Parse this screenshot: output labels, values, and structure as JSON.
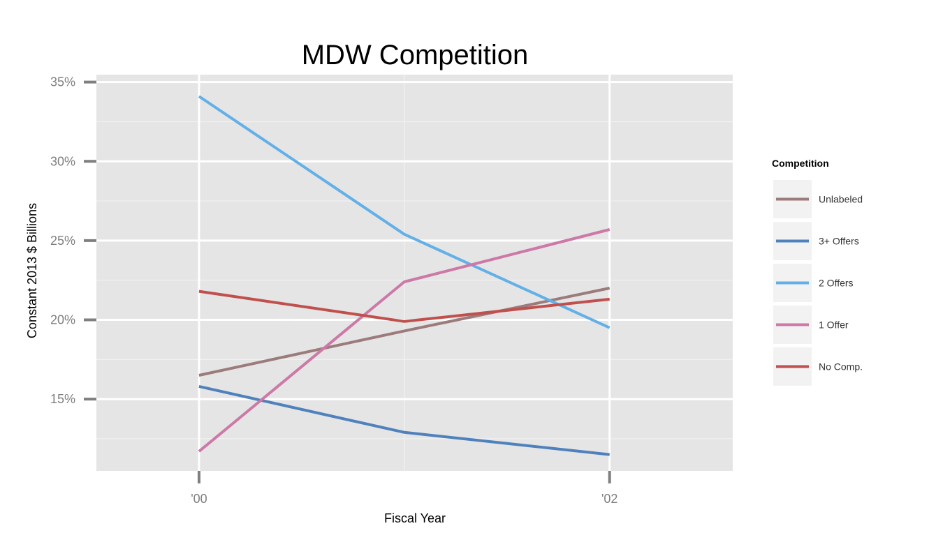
{
  "chart_data": {
    "type": "line",
    "title": "MDW Competition",
    "xlabel": "Fiscal Year",
    "ylabel": "Constant 2013 $ Billions",
    "x": [
      2000,
      2001,
      2002
    ],
    "x_ticks": [
      {
        "value": 2000,
        "label": "'00"
      },
      {
        "value": 2002,
        "label": "'02"
      }
    ],
    "xlim": [
      1999.5,
      2002.6
    ],
    "y_ticks": [
      {
        "value": 0.15,
        "label": "15%"
      },
      {
        "value": 0.2,
        "label": "20%"
      },
      {
        "value": 0.25,
        "label": "25%"
      },
      {
        "value": 0.3,
        "label": "30%"
      },
      {
        "value": 0.35,
        "label": "35%"
      }
    ],
    "ylim": [
      0.1047,
      0.3547
    ],
    "grid": true,
    "legend": {
      "title": "Competition",
      "placement": "right"
    },
    "series": [
      {
        "name": "Unlabeled",
        "color": "#9b7b7b",
        "values": [
          0.165,
          0.193,
          0.22
        ]
      },
      {
        "name": "3+ Offers",
        "color": "#4f81bd",
        "values": [
          0.158,
          0.129,
          0.115
        ]
      },
      {
        "name": "2 Offers",
        "color": "#63b0e8",
        "values": [
          0.341,
          0.254,
          0.195
        ]
      },
      {
        "name": "1 Offer",
        "color": "#cc79a7",
        "values": [
          0.117,
          0.224,
          0.257
        ]
      },
      {
        "name": "No Comp.",
        "color": "#c0504d",
        "values": [
          0.218,
          0.199,
          0.213
        ]
      }
    ],
    "colors": {
      "panel_background": "#e5e5e5",
      "grid_major": "#ffffff",
      "grid_minor": "#f2f2f2",
      "tick_mark": "#7f7f7f",
      "legend_key_background": "#f2f2f2"
    }
  }
}
